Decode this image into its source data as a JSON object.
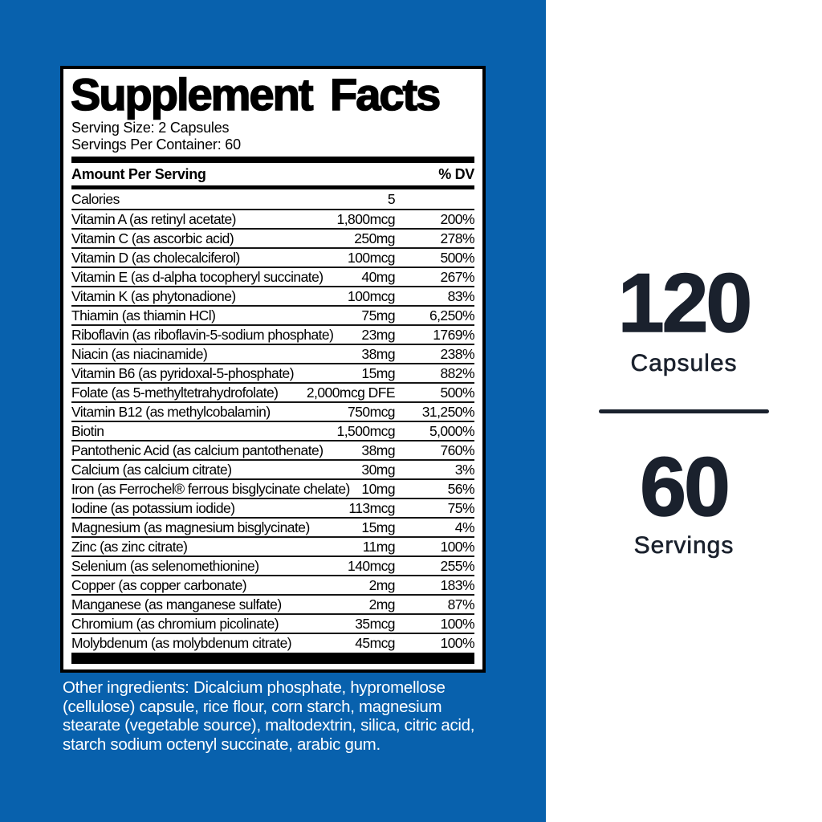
{
  "colors": {
    "background_blue": "#0861ad",
    "panel_white": "#ffffff",
    "label_text": "#000000",
    "navy_text": "#1a212d"
  },
  "label": {
    "title": "Supplement Facts",
    "serving_size": "Serving Size: 2 Capsules",
    "servings_per_container": "Servings Per Container: 60",
    "amount_header": "Amount Per Serving",
    "dv_header": "% DV",
    "rows": [
      {
        "name": "Calories",
        "amount": "5",
        "dv": ""
      },
      {
        "name": "Vitamin A (as retinyl acetate)",
        "amount": "1,800mcg",
        "dv": "200%"
      },
      {
        "name": "Vitamin C (as ascorbic acid)",
        "amount": "250mg",
        "dv": "278%"
      },
      {
        "name": "Vitamin D (as cholecalciferol)",
        "amount": "100mcg",
        "dv": "500%"
      },
      {
        "name": "Vitamin E (as d-alpha tocopheryl succinate)",
        "amount": "40mg",
        "dv": "267%"
      },
      {
        "name": "Vitamin K (as phytonadione)",
        "amount": "100mcg",
        "dv": "83%"
      },
      {
        "name": "Thiamin (as thiamin HCl)",
        "amount": "75mg",
        "dv": "6,250%"
      },
      {
        "name": "Riboflavin (as riboflavin-5-sodium phosphate)",
        "amount": "23mg",
        "dv": "1769%"
      },
      {
        "name": "Niacin (as niacinamide)",
        "amount": "38mg",
        "dv": "238%"
      },
      {
        "name": "Vitamin B6 (as pyridoxal-5-phosphate)",
        "amount": "15mg",
        "dv": "882%"
      },
      {
        "name": "Folate (as 5-methyltetrahydrofolate)",
        "amount": "2,000mcg DFE",
        "dv": "500%"
      },
      {
        "name": "Vitamin B12 (as methylcobalamin)",
        "amount": "750mcg",
        "dv": "31,250%"
      },
      {
        "name": "Biotin",
        "amount": "1,500mcg",
        "dv": "5,000%"
      },
      {
        "name": "Pantothenic Acid (as calcium pantothenate)",
        "amount": "38mg",
        "dv": "760%"
      },
      {
        "name": "Calcium (as calcium citrate)",
        "amount": "30mg",
        "dv": "3%"
      },
      {
        "name": "Iron (as Ferrochel® ferrous bisglycinate chelate)",
        "amount": "10mg",
        "dv": "56%"
      },
      {
        "name": "Iodine (as potassium iodide)",
        "amount": "113mcg",
        "dv": "75%"
      },
      {
        "name": "Magnesium (as magnesium bisglycinate)",
        "amount": "15mg",
        "dv": "4%"
      },
      {
        "name": "Zinc (as zinc citrate)",
        "amount": "11mg",
        "dv": "100%"
      },
      {
        "name": "Selenium (as selenomethionine)",
        "amount": "140mcg",
        "dv": "255%"
      },
      {
        "name": "Copper (as copper carbonate)",
        "amount": "2mg",
        "dv": "183%"
      },
      {
        "name": "Manganese (as manganese sulfate)",
        "amount": "2mg",
        "dv": "87%"
      },
      {
        "name": "Chromium (as chromium picolinate)",
        "amount": "35mcg",
        "dv": "100%"
      },
      {
        "name": "Molybdenum (as molybdenum citrate)",
        "amount": "45mcg",
        "dv": "100%"
      }
    ],
    "other_ingredients": "Other ingredients: Dicalcium phosphate, hypromellose (cellulose) capsule, rice flour, corn starch, magnesium stearate (vegetable source), maltodextrin, silica, citric acid, starch sodium octenyl succinate, arabic gum."
  },
  "side_panel": {
    "capsules_value": "120",
    "capsules_label": "Capsules",
    "servings_value": "60",
    "servings_label": "Servings"
  }
}
